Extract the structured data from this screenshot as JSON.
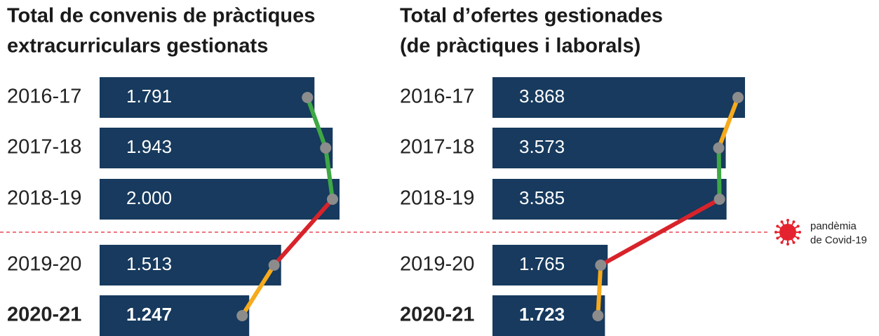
{
  "chart_data": [
    {
      "type": "bar",
      "orientation": "horizontal",
      "title": [
        "Total de convenis de pràctiques",
        "extracurriculars gestionats"
      ],
      "categories": [
        "2016-17",
        "2017-18",
        "2018-19",
        "2019-20",
        "2020-21"
      ],
      "values": [
        1791,
        1943,
        2000,
        1513,
        1247
      ],
      "value_labels": [
        "1.791",
        "1.943",
        "2.000",
        "1.513",
        "1.247"
      ],
      "color": "#173a5e",
      "line_colors": [
        "#3ea845",
        "#3ea845",
        "#d8232a",
        "#f6aa1c"
      ],
      "highlight_index": 4
    },
    {
      "type": "bar",
      "orientation": "horizontal",
      "title": [
        "Total d’ofertes gestionades",
        "(de pràctiques i laborals)"
      ],
      "categories": [
        "2016-17",
        "2017-18",
        "2018-19",
        "2019-20",
        "2020-21"
      ],
      "values": [
        3868,
        3573,
        3585,
        1765,
        1723
      ],
      "value_labels": [
        "3.868",
        "3.573",
        "3.585",
        "1.765",
        "1.723"
      ],
      "color": "#173a5e",
      "line_colors": [
        "#f6aa1c",
        "#3ea845",
        "#d8232a",
        "#f6aa1c"
      ],
      "highlight_index": 4
    }
  ],
  "annotation": {
    "lines": [
      "pandèmia",
      "de Covid-19"
    ],
    "color": "#e52330"
  }
}
